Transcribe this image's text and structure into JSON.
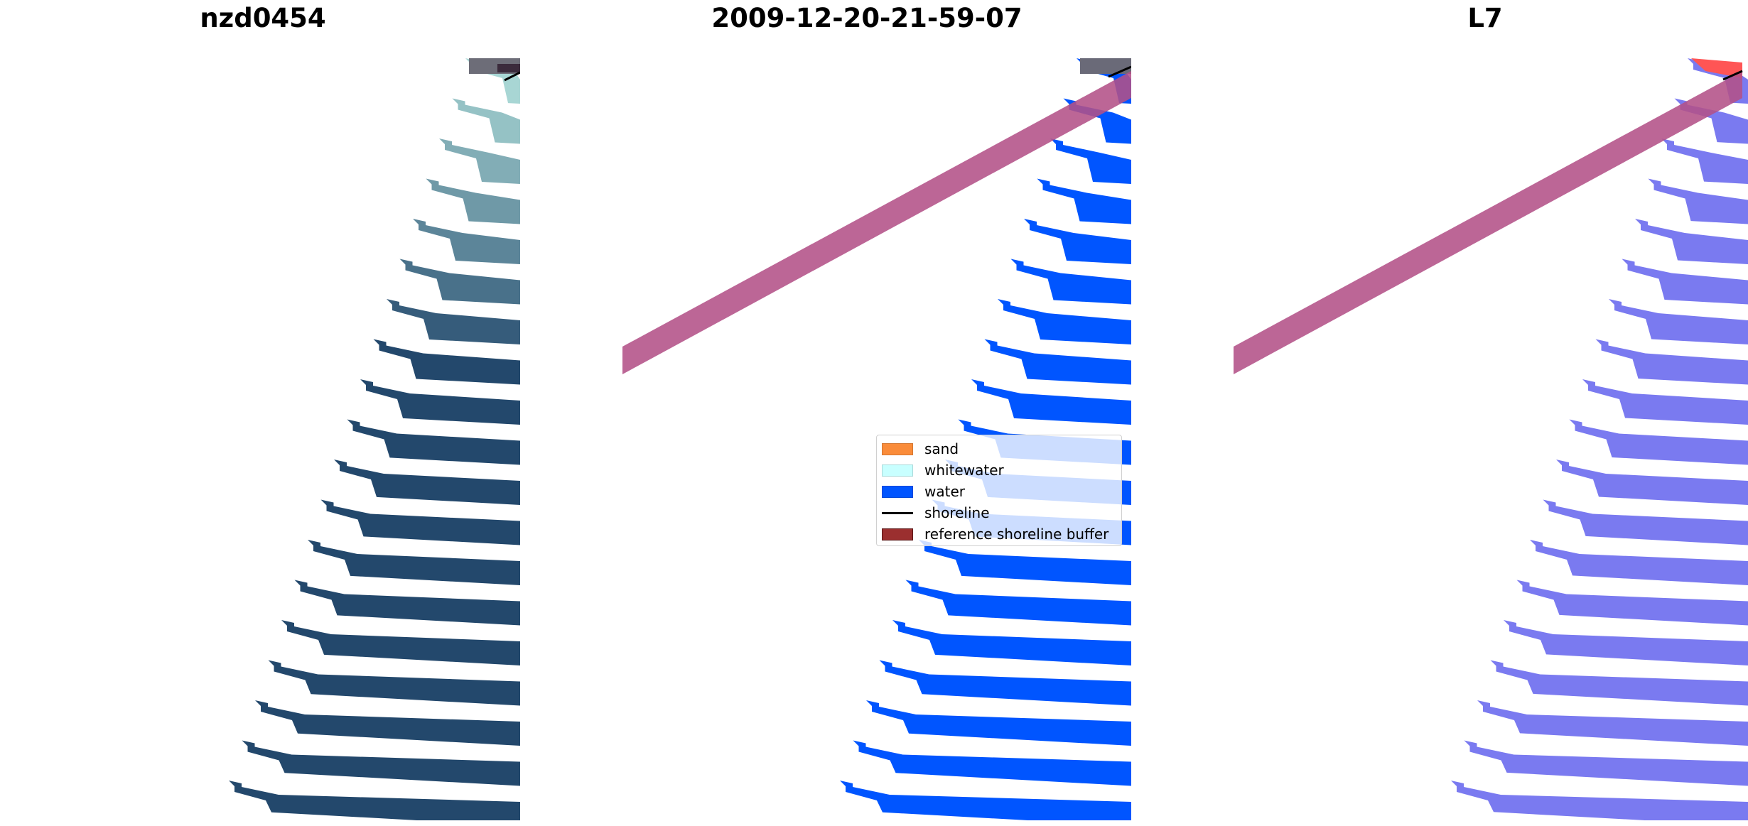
{
  "panels": [
    {
      "title": "nzd0454",
      "kind": "image"
    },
    {
      "title": "2009-12-20-21-59-07",
      "kind": "classified"
    },
    {
      "title": "L7",
      "kind": "index"
    }
  ],
  "legend": {
    "placement": "center",
    "items": [
      {
        "label": "sand",
        "color": "#fa8c3a",
        "type": "patch"
      },
      {
        "label": "whitewater",
        "color": "#c8ffff",
        "type": "patch"
      },
      {
        "label": "water",
        "color": "#0055ff",
        "type": "patch"
      },
      {
        "label": "shoreline",
        "color": "#000000",
        "type": "line"
      },
      {
        "label": "reference shoreline buffer",
        "color": "#9b2f2f",
        "type": "patch"
      }
    ]
  },
  "colors": {
    "buffer_overlay": "#b35188",
    "water_mask": "#0055ff",
    "index_water": "#7a7af0",
    "index_red": "#ff5555",
    "image_water_dark": "#23486c",
    "image_water_light": "#a8d6d4"
  }
}
